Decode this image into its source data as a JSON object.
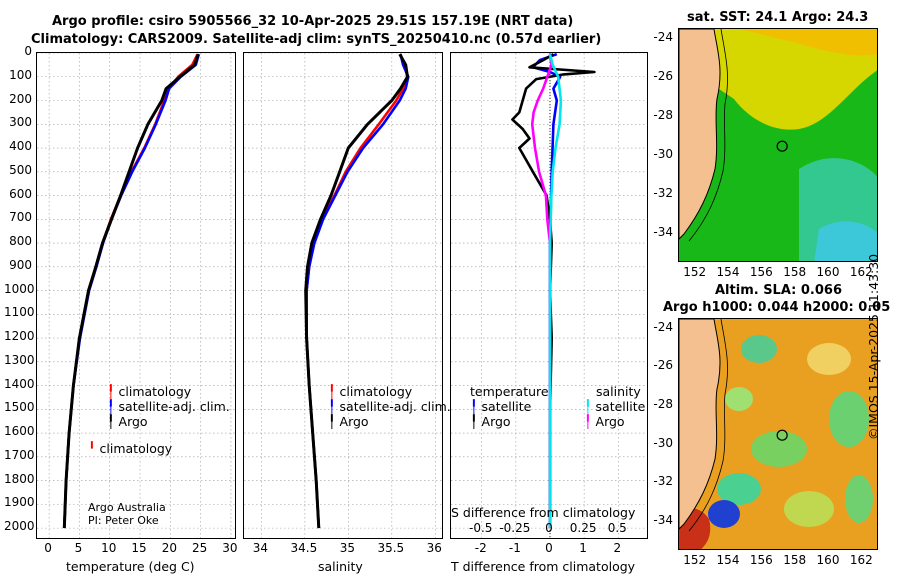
{
  "header": {
    "line1": "Argo profile: csiro 5905566_32 10-Apr-2025 29.51S 157.19E (NRT data)",
    "line2": "Climatology: CARS2009. Satellite-adj clim: synTS_20250410.nc (0.57d earlier)"
  },
  "colors": {
    "climatology": "#ff0000",
    "satellite_adj": "#0000ff",
    "argo": "#000000",
    "sal_satellite": "#00e5ee",
    "sal_argo": "#ff00ff"
  },
  "depth_ticks": [
    "0",
    "100",
    "200",
    "300",
    "400",
    "500",
    "600",
    "700",
    "800",
    "900",
    "1000",
    "1100",
    "1200",
    "1300",
    "1400",
    "1500",
    "1600",
    "1700",
    "1800",
    "1900",
    "2000"
  ],
  "chart_data": [
    {
      "type": "line",
      "name": "temperature_profile",
      "xlabel": "temperature (deg C)",
      "ylabel": "depth",
      "xlim": [
        -2,
        31
      ],
      "ylim": [
        2050,
        0
      ],
      "xticks": [
        "0",
        "5",
        "10",
        "15",
        "20",
        "25",
        "30"
      ],
      "legend": [
        "climatology",
        "satellite-adj. clim.",
        "Argo"
      ],
      "series": [
        {
          "name": "climatology",
          "depth": [
            5,
            50,
            100,
            150,
            200,
            300,
            400,
            500,
            600,
            700,
            800,
            900,
            1000,
            1200,
            1400,
            1600,
            1800,
            2000
          ],
          "values": [
            24.5,
            23.6,
            21.3,
            19.7,
            19.0,
            17.5,
            15.7,
            13.6,
            11.8,
            10.2,
            8.8,
            7.7,
            6.5,
            5.0,
            4.0,
            3.3,
            2.8,
            2.5
          ]
        },
        {
          "name": "satellite-adj. clim.",
          "depth": [
            5,
            50,
            100,
            150,
            200,
            300,
            400,
            500,
            600,
            700,
            800,
            900,
            1000,
            1200,
            1400,
            1600,
            1800,
            2000
          ],
          "values": [
            24.7,
            24.2,
            21.7,
            19.8,
            19.2,
            17.6,
            15.8,
            13.7,
            11.9,
            10.3,
            8.9,
            7.8,
            6.6,
            5.1,
            4.0,
            3.3,
            2.8,
            2.5
          ]
        },
        {
          "name": "Argo",
          "depth": [
            5,
            50,
            100,
            150,
            200,
            300,
            400,
            500,
            600,
            700,
            800,
            900,
            1000,
            1200,
            1400,
            1600,
            1800,
            2000
          ],
          "values": [
            24.6,
            24.0,
            21.6,
            19.3,
            18.6,
            16.3,
            14.6,
            13.2,
            11.8,
            10.3,
            8.8,
            7.7,
            6.5,
            5.0,
            4.0,
            3.3,
            2.8,
            2.5
          ]
        }
      ]
    },
    {
      "type": "line",
      "name": "salinity_profile",
      "xlabel": "salinity",
      "ylabel": "depth",
      "xlim": [
        33.8,
        36.1
      ],
      "ylim": [
        2050,
        0
      ],
      "xticks": [
        "34",
        "34.5",
        "35",
        "35.5",
        "36"
      ],
      "legend": [
        "climatology",
        "satellite-adj. clim.",
        "Argo"
      ],
      "series": [
        {
          "name": "climatology",
          "depth": [
            5,
            50,
            100,
            150,
            200,
            300,
            400,
            500,
            600,
            700,
            800,
            900,
            1000,
            1200,
            1400,
            1600,
            1800,
            2000
          ],
          "values": [
            35.6,
            35.64,
            35.68,
            35.63,
            35.55,
            35.35,
            35.14,
            34.97,
            34.84,
            34.7,
            34.6,
            34.55,
            34.52,
            34.52,
            34.55,
            34.59,
            34.63,
            34.66
          ]
        },
        {
          "name": "satellite-adj. clim.",
          "depth": [
            5,
            50,
            100,
            150,
            200,
            300,
            400,
            500,
            600,
            700,
            800,
            900,
            1000,
            1200,
            1400,
            1600,
            1800,
            2000
          ],
          "values": [
            35.6,
            35.63,
            35.69,
            35.66,
            35.59,
            35.4,
            35.17,
            34.99,
            34.85,
            34.71,
            34.61,
            34.55,
            34.52,
            34.52,
            34.55,
            34.59,
            34.63,
            34.66
          ]
        },
        {
          "name": "Argo",
          "depth": [
            5,
            50,
            100,
            150,
            200,
            300,
            400,
            500,
            600,
            700,
            800,
            900,
            1000,
            1200,
            1400,
            1600,
            1800,
            2000
          ],
          "values": [
            35.59,
            35.66,
            35.68,
            35.6,
            35.5,
            35.22,
            35.0,
            34.9,
            34.8,
            34.68,
            34.58,
            34.53,
            34.51,
            34.52,
            34.55,
            34.59,
            34.63,
            34.66
          ]
        }
      ]
    },
    {
      "type": "line",
      "name": "difference_from_climatology",
      "xlabel": "T difference from climatology",
      "xlabel_top": "S difference from climatology",
      "xlim": [
        -2.9,
        2.9
      ],
      "ylim": [
        2050,
        0
      ],
      "xticks": [
        "-2",
        "-1",
        "0",
        "1",
        "2"
      ],
      "xticks_top": [
        "-0.5",
        "-0.25",
        "0",
        "0.25",
        "0.5"
      ],
      "legend_temperature_title": "temperature",
      "legend_salinity_title": "salinity",
      "legend_temperature": [
        "satellite",
        "Argo"
      ],
      "legend_salinity": [
        "satellite",
        "Argo"
      ],
      "series": [
        {
          "name": "temperature satellite",
          "depth": [
            5,
            30,
            60,
            80,
            100,
            150,
            200,
            300,
            500,
            800,
            1000,
            2000
          ],
          "values": [
            0.2,
            -0.3,
            -0.5,
            0.0,
            0.3,
            0.1,
            0.2,
            0.1,
            0.05,
            0.0,
            0.0,
            0.0
          ]
        },
        {
          "name": "temperature Argo",
          "depth": [
            5,
            30,
            60,
            80,
            90,
            110,
            150,
            200,
            250,
            280,
            320,
            360,
            400,
            450,
            500,
            600,
            700,
            800,
            1000,
            1200,
            1500,
            2000
          ],
          "values": [
            0.1,
            -0.2,
            -0.6,
            1.3,
            0.4,
            -0.4,
            -0.7,
            -0.8,
            -0.9,
            -1.1,
            -0.8,
            -0.6,
            -0.9,
            -0.7,
            -0.5,
            -0.1,
            0.0,
            0.05,
            0.0,
            0.05,
            0.0,
            0.0
          ]
        },
        {
          "name": "salinity satellite",
          "depth": [
            5,
            50,
            100,
            200,
            300,
            400,
            500,
            600,
            800,
            1000,
            1500,
            2000
          ],
          "values": [
            0.0,
            0.02,
            0.06,
            0.08,
            0.07,
            0.04,
            0.02,
            0.01,
            0.0,
            0.0,
            0.0,
            0.0
          ]
        },
        {
          "name": "salinity Argo",
          "depth": [
            5,
            50,
            100,
            150,
            200,
            250,
            300,
            400,
            500,
            600,
            700,
            800,
            1000,
            1500,
            2000
          ],
          "values": [
            0.0,
            0.01,
            -0.02,
            -0.05,
            -0.09,
            -0.12,
            -0.13,
            -0.11,
            -0.08,
            -0.03,
            -0.02,
            0.0,
            0.0,
            0.0,
            0.0
          ]
        }
      ]
    },
    {
      "type": "heatmap",
      "name": "satellite_sst_map",
      "title": "sat. SST: 24.1 Argo: 24.3",
      "xlim": [
        151,
        163
      ],
      "ylim": [
        -35.5,
        -23.5
      ],
      "xticks": [
        "152",
        "154",
        "156",
        "158",
        "160",
        "162"
      ],
      "yticks": [
        "-24",
        "-26",
        "-28",
        "-30",
        "-32",
        "-34"
      ],
      "argo_position": {
        "lon": 157.19,
        "lat": -29.51
      }
    },
    {
      "type": "heatmap",
      "name": "altimetry_sla_map",
      "title": "Altim. SLA: 0.066",
      "subtitle": "Argo h1000: 0.044 h2000: 0.05",
      "xlim": [
        151,
        163
      ],
      "ylim": [
        -35.5,
        -23.5
      ],
      "xticks": [
        "152",
        "154",
        "156",
        "158",
        "160",
        "162"
      ],
      "yticks": [
        "-24",
        "-26",
        "-28",
        "-30",
        "-32",
        "-34"
      ],
      "argo_position": {
        "lon": 157.19,
        "lat": -29.51
      }
    }
  ],
  "credit": {
    "line1": "Argo Australia",
    "line2": "PI: Peter Oke"
  },
  "footer": {
    "stamp": "©IMOS 15-Apr-2025 11:43:30"
  }
}
